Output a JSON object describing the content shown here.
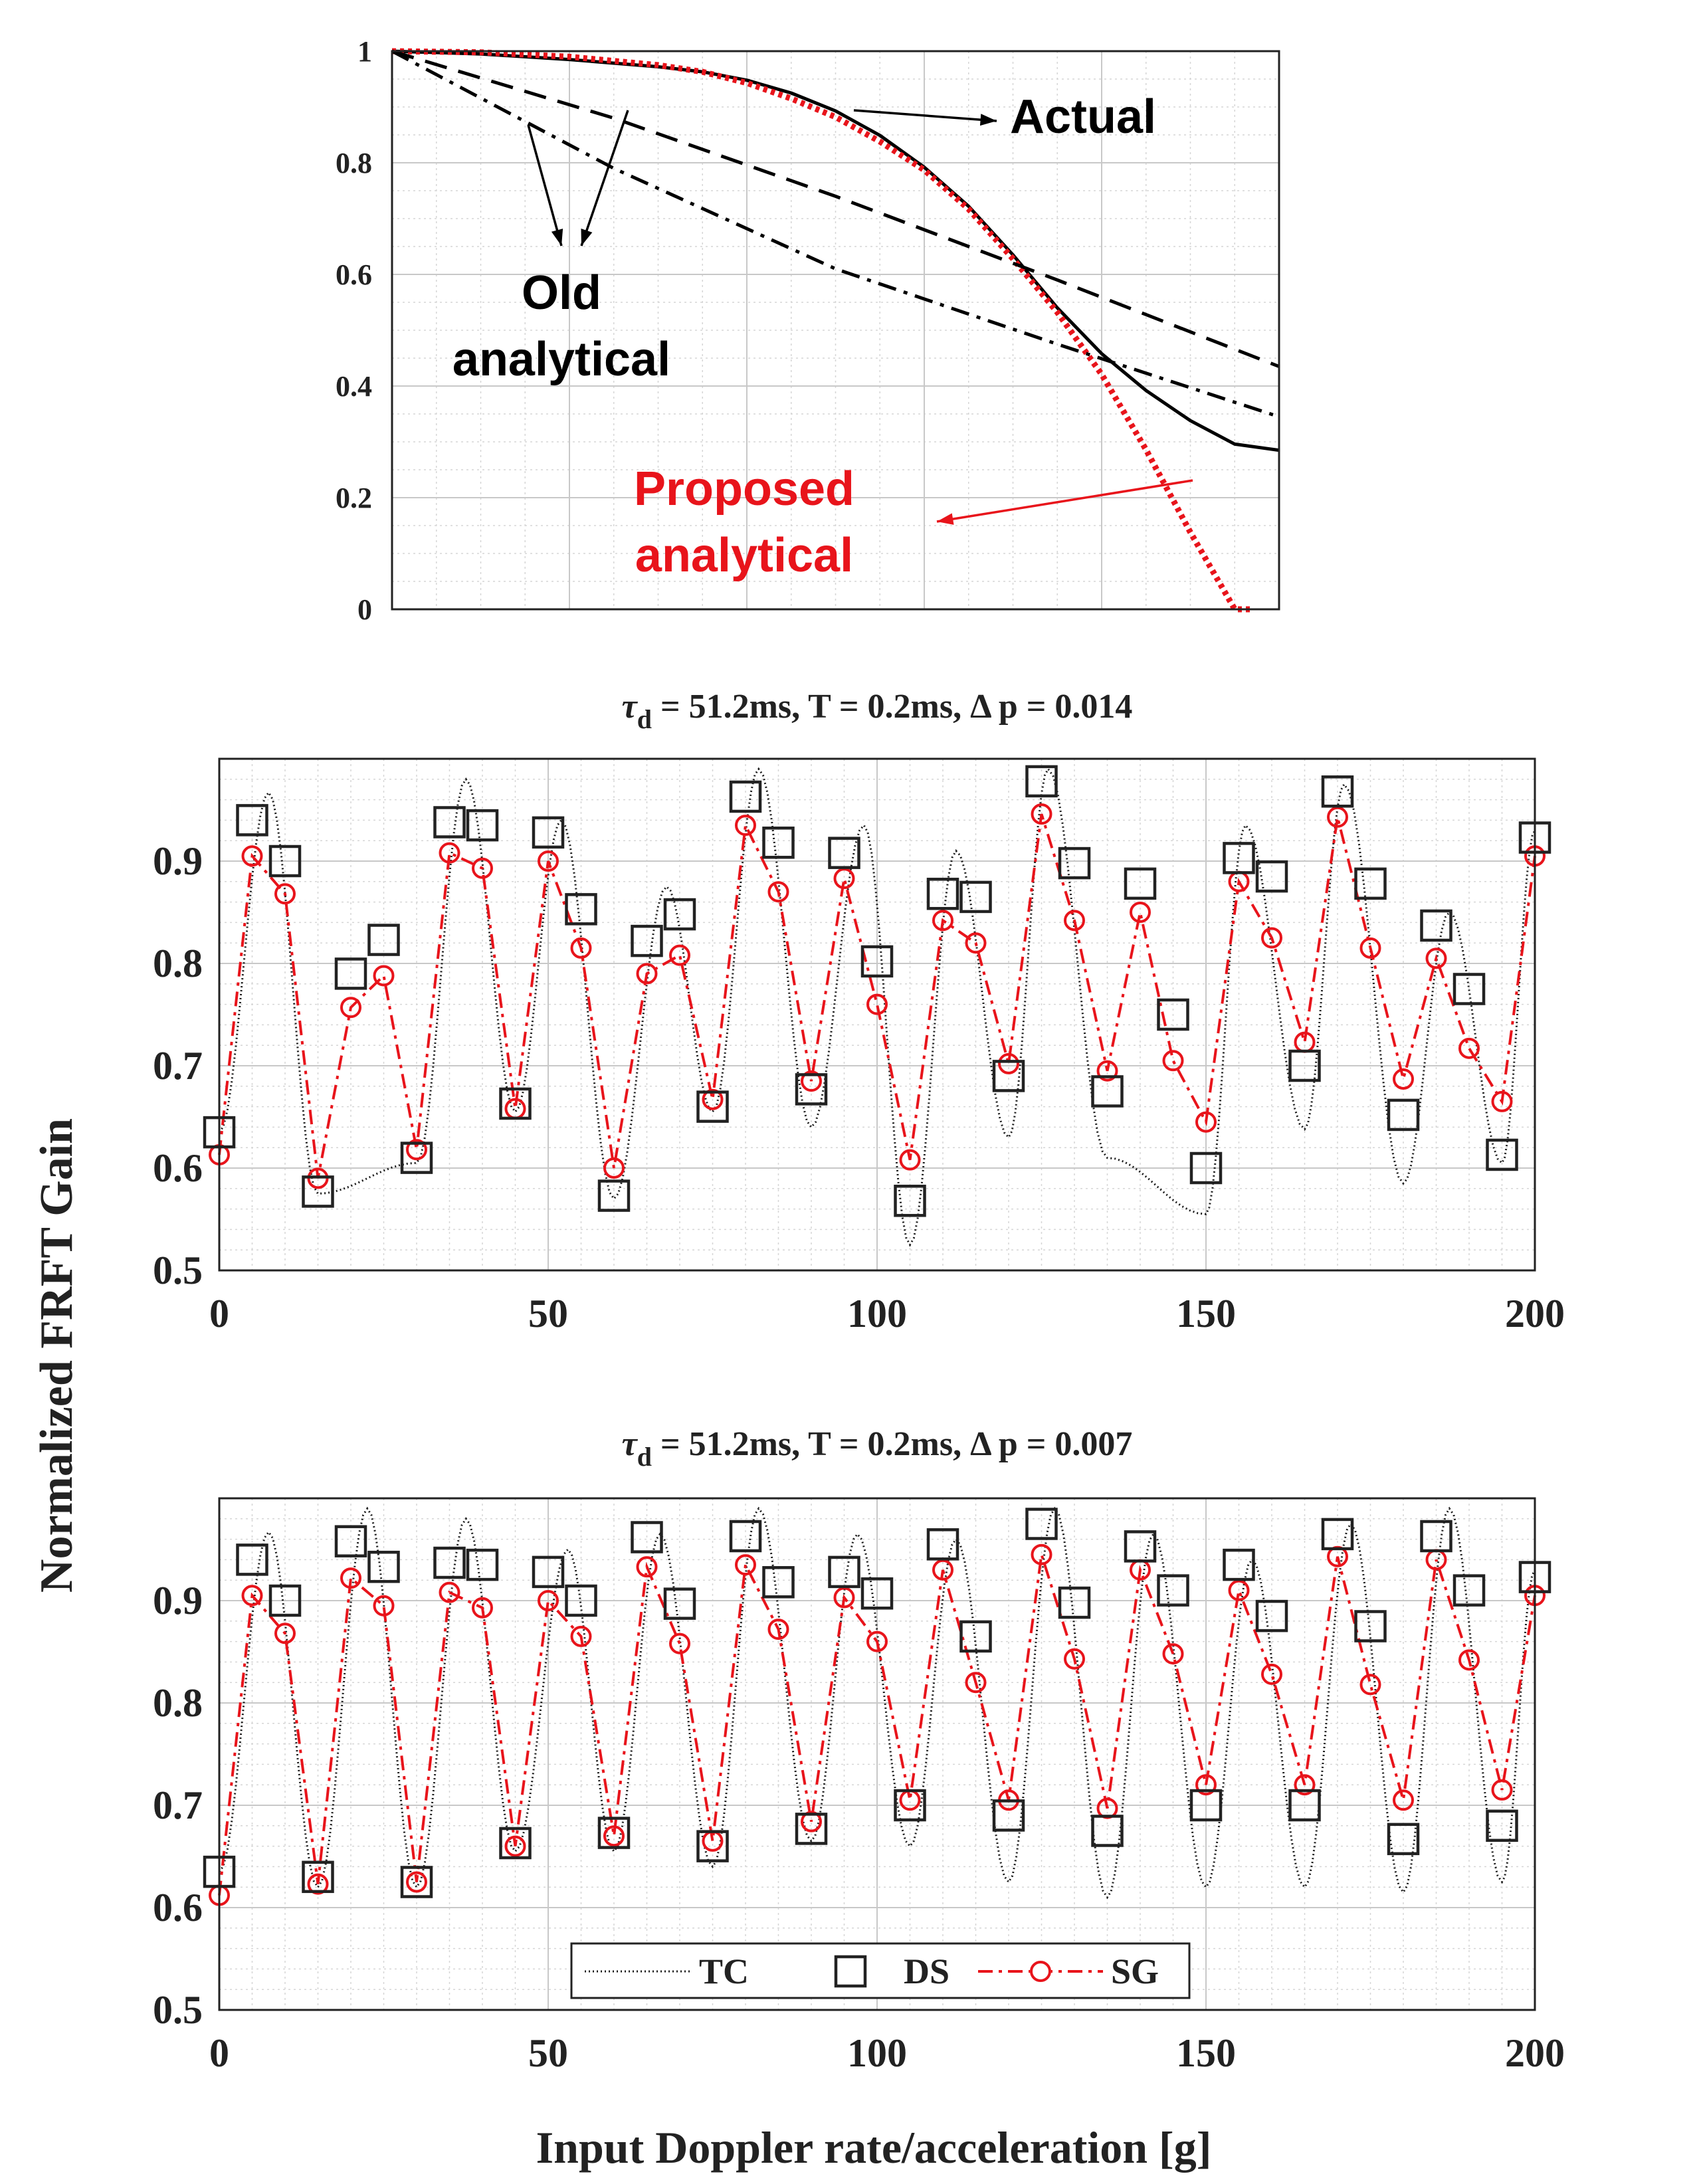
{
  "colors": {
    "actual": "#000000",
    "proposed": "#e8141b",
    "grid": "#c8c8c8",
    "minor_grid": "#d6d6d6",
    "tc": "#1a1a1a",
    "ds": "#222222",
    "sg": "#e8141b"
  },
  "figure": {
    "ylabel": "Normalized FRFT Gain",
    "xlabel": "Input Doppler rate/acceleration [g]"
  },
  "chart_data": [
    {
      "type": "line",
      "title": "",
      "xlabel": "",
      "ylabel": "",
      "xlim": [
        0,
        1
      ],
      "ylim": [
        0,
        1
      ],
      "yticks": [
        "0",
        "0.2",
        "0.4",
        "0.6",
        "0.8",
        "1"
      ],
      "grid": true,
      "legend": "none",
      "series": [
        {
          "name": "Actual",
          "style": "solid",
          "color": "#000000",
          "x": [
            0,
            0.1,
            0.2,
            0.3,
            0.35,
            0.4,
            0.45,
            0.5,
            0.55,
            0.6,
            0.65,
            0.7,
            0.75,
            0.8,
            0.85,
            0.9,
            0.95,
            1.0
          ],
          "y": [
            1.0,
            0.995,
            0.985,
            0.972,
            0.963,
            0.948,
            0.925,
            0.893,
            0.849,
            0.792,
            0.722,
            0.635,
            0.54,
            0.458,
            0.392,
            0.338,
            0.296,
            0.285
          ]
        },
        {
          "name": "Proposed analytical",
          "style": "dotted",
          "color": "#e8141b",
          "x": [
            0,
            0.1,
            0.2,
            0.3,
            0.35,
            0.4,
            0.45,
            0.5,
            0.55,
            0.6,
            0.65,
            0.7,
            0.75,
            0.8,
            0.85,
            0.9,
            0.95,
            0.97
          ],
          "y": [
            1.0,
            0.998,
            0.99,
            0.975,
            0.963,
            0.943,
            0.915,
            0.882,
            0.838,
            0.787,
            0.717,
            0.628,
            0.532,
            0.421,
            0.286,
            0.138,
            0.0,
            -0.02
          ]
        },
        {
          "name": "Old analytical (dashed)",
          "style": "dashed",
          "color": "#000000",
          "x": [
            0,
            0.25,
            0.5,
            0.75,
            1.0
          ],
          "y": [
            1.0,
            0.88,
            0.74,
            0.59,
            0.435
          ]
        },
        {
          "name": "Old analytical (dash-dot)",
          "style": "dashdot",
          "color": "#000000",
          "x": [
            0,
            0.25,
            0.5,
            0.75,
            1.0
          ],
          "y": [
            1.0,
            0.79,
            0.61,
            0.475,
            0.345
          ]
        }
      ],
      "annotations": [
        {
          "text": "Actual",
          "color": "#000000"
        },
        {
          "text": "Old",
          "color": "#000000"
        },
        {
          "text": "analytical",
          "color": "#000000"
        },
        {
          "text": "Proposed",
          "color": "#e8141b"
        },
        {
          "text": "analytical",
          "color": "#e8141b"
        }
      ]
    },
    {
      "type": "line",
      "title": "τd = 51.2ms, T = 0.2ms, Δ p = 0.014",
      "xlabel": "",
      "ylabel": "",
      "xlim": [
        0,
        200
      ],
      "ylim": [
        0.5,
        1.0
      ],
      "xticks": [
        0,
        50,
        100,
        150,
        200
      ],
      "yticks": [
        "0.5",
        "0.6",
        "0.7",
        "0.8",
        "0.9"
      ],
      "grid": true,
      "legend": "none",
      "x": [
        0,
        5,
        10,
        15,
        20,
        25,
        30,
        35,
        40,
        45,
        50,
        55,
        60,
        65,
        70,
        75,
        80,
        85,
        90,
        95,
        100,
        105,
        110,
        115,
        120,
        125,
        130,
        135,
        140,
        145,
        150,
        155,
        160,
        165,
        170,
        175,
        180,
        185,
        190,
        195,
        200
      ],
      "series": [
        {
          "name": "DS",
          "values": [
            0.635,
            0.94,
            0.9,
            0.577,
            0.79,
            0.823,
            0.61,
            0.938,
            0.935,
            0.663,
            0.928,
            0.853,
            0.573,
            0.822,
            0.848,
            0.66,
            0.963,
            0.918,
            0.677,
            0.908,
            0.802,
            0.568,
            0.868,
            0.865,
            0.69,
            0.978,
            0.898,
            0.675,
            0.878,
            0.75,
            0.6,
            0.903,
            0.885,
            0.7,
            0.968,
            0.878,
            0.652,
            0.837,
            0.775,
            0.613,
            0.923
          ]
        },
        {
          "name": "SG",
          "values": [
            0.613,
            0.905,
            0.868,
            0.59,
            0.757,
            0.788,
            0.618,
            0.908,
            0.893,
            0.658,
            0.9,
            0.815,
            0.6,
            0.79,
            0.808,
            0.667,
            0.935,
            0.87,
            0.685,
            0.883,
            0.76,
            0.608,
            0.842,
            0.82,
            0.702,
            0.946,
            0.842,
            0.695,
            0.85,
            0.705,
            0.645,
            0.88,
            0.825,
            0.723,
            0.943,
            0.815,
            0.687,
            0.805,
            0.717,
            0.665,
            0.905
          ]
        },
        {
          "name": "TC",
          "peaks": [
            [
              7.5,
              0.967
            ],
            [
              37.5,
              0.98
            ],
            [
              52,
              0.94
            ],
            [
              68,
              0.875
            ],
            [
              82,
              0.99
            ],
            [
              98,
              0.935
            ],
            [
              112,
              0.91
            ],
            [
              126,
              0.99
            ],
            [
              156,
              0.935
            ],
            [
              171,
              0.975
            ],
            [
              187,
              0.85
            ],
            [
              200,
              0.93
            ]
          ],
          "troughs": [
            [
              15,
              0.575
            ],
            [
              30,
              0.605
            ],
            [
              45,
              0.655
            ],
            [
              60,
              0.57
            ],
            [
              75,
              0.655
            ],
            [
              90,
              0.64
            ],
            [
              105,
              0.525
            ],
            [
              120,
              0.63
            ],
            [
              135,
              0.61
            ],
            [
              150,
              0.555
            ],
            [
              165,
              0.638
            ],
            [
              180,
              0.585
            ],
            [
              195,
              0.605
            ]
          ]
        }
      ]
    },
    {
      "type": "line",
      "title": "τd = 51.2ms, T = 0.2ms, Δ p = 0.007",
      "xlabel": "Input Doppler rate/acceleration [g]",
      "ylabel": "",
      "xlim": [
        0,
        200
      ],
      "ylim": [
        0.5,
        1.0
      ],
      "xticks": [
        0,
        50,
        100,
        150,
        200
      ],
      "yticks": [
        "0.5",
        "0.6",
        "0.7",
        "0.8",
        "0.9"
      ],
      "grid": true,
      "legend": "bottom-center",
      "legend_entries": [
        "TC",
        "DS",
        "SG"
      ],
      "x": [
        0,
        5,
        10,
        15,
        20,
        25,
        30,
        35,
        40,
        45,
        50,
        55,
        60,
        65,
        70,
        75,
        80,
        85,
        90,
        95,
        100,
        105,
        110,
        115,
        120,
        125,
        130,
        135,
        140,
        145,
        150,
        155,
        160,
        165,
        170,
        175,
        180,
        185,
        190,
        195,
        200
      ],
      "series": [
        {
          "name": "DS",
          "values": [
            0.635,
            0.94,
            0.9,
            0.63,
            0.958,
            0.933,
            0.625,
            0.937,
            0.935,
            0.663,
            0.928,
            0.9,
            0.673,
            0.962,
            0.897,
            0.66,
            0.963,
            0.918,
            0.677,
            0.928,
            0.907,
            0.7,
            0.955,
            0.865,
            0.69,
            0.975,
            0.898,
            0.675,
            0.953,
            0.91,
            0.7,
            0.935,
            0.885,
            0.7,
            0.965,
            0.875,
            0.667,
            0.963,
            0.91,
            0.68,
            0.923
          ]
        },
        {
          "name": "SG",
          "values": [
            0.612,
            0.905,
            0.868,
            0.623,
            0.922,
            0.895,
            0.625,
            0.908,
            0.893,
            0.66,
            0.9,
            0.865,
            0.67,
            0.933,
            0.858,
            0.665,
            0.935,
            0.872,
            0.684,
            0.903,
            0.86,
            0.705,
            0.93,
            0.82,
            0.705,
            0.945,
            0.843,
            0.697,
            0.93,
            0.848,
            0.72,
            0.91,
            0.828,
            0.72,
            0.943,
            0.818,
            0.705,
            0.94,
            0.842,
            0.715,
            0.905
          ]
        },
        {
          "name": "TC",
          "peaks": [
            [
              7.5,
              0.967
            ],
            [
              22.5,
              0.99
            ],
            [
              37.5,
              0.98
            ],
            [
              53,
              0.95
            ],
            [
              67,
              0.965
            ],
            [
              82,
              0.99
            ],
            [
              97,
              0.965
            ],
            [
              112,
              0.96
            ],
            [
              127,
              0.99
            ],
            [
              142,
              0.965
            ],
            [
              157,
              0.94
            ],
            [
              172,
              0.975
            ],
            [
              187,
              0.99
            ],
            [
              200,
              0.93
            ]
          ],
          "troughs": [
            [
              15,
              0.62
            ],
            [
              30,
              0.62
            ],
            [
              45,
              0.655
            ],
            [
              60,
              0.655
            ],
            [
              75,
              0.64
            ],
            [
              90,
              0.665
            ],
            [
              105,
              0.66
            ],
            [
              120,
              0.625
            ],
            [
              135,
              0.61
            ],
            [
              150,
              0.62
            ],
            [
              165,
              0.62
            ],
            [
              180,
              0.615
            ],
            [
              195,
              0.625
            ]
          ]
        }
      ]
    }
  ]
}
